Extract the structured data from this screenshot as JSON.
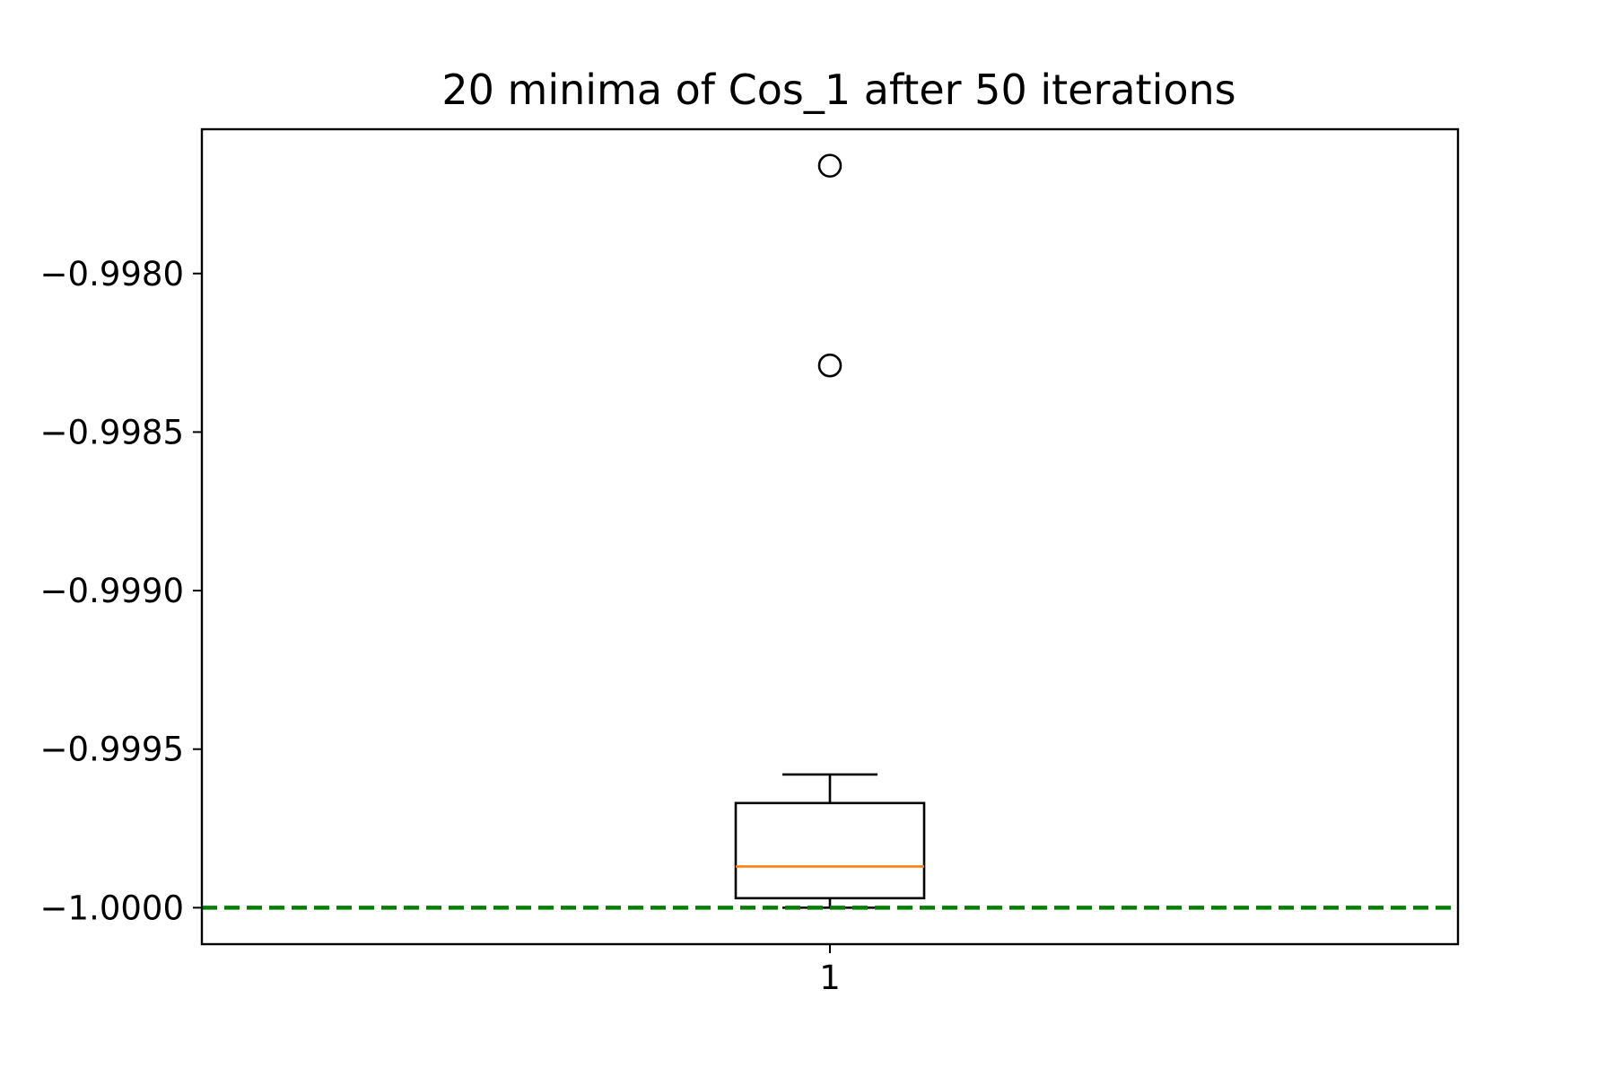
{
  "chart_data": {
    "type": "box",
    "title": "20 minima of Cos_1 after 50 iterations",
    "xlabel": "",
    "ylabel": "",
    "categories": [
      "1"
    ],
    "ylim": [
      -1.000115,
      -0.997545
    ],
    "yticks": [
      -1.0,
      -0.9995,
      -0.999,
      -0.9985,
      -0.998
    ],
    "ytick_labels": [
      "−1.0000",
      "−0.9995",
      "−0.9990",
      "−0.9985",
      "−0.9980"
    ],
    "boxes": [
      {
        "category": "1",
        "whisker_low": -1.0,
        "q1": -0.99997,
        "median": -0.99987,
        "q3": -0.99967,
        "whisker_high": -0.99958,
        "outliers": [
          -0.99829,
          -0.99766
        ]
      }
    ],
    "reference_line": {
      "y": -1.0,
      "style": "dashed"
    },
    "grid": false,
    "colors": {
      "box": "#000000",
      "median": "#ff7f0e",
      "reference": "#008000"
    }
  }
}
